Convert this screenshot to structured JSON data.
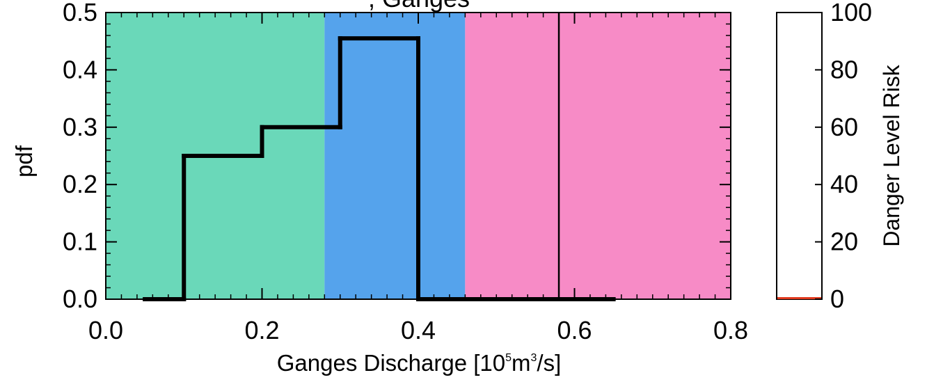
{
  "chart_data": [
    {
      "type": "step",
      "title_fragment": ", Ganges",
      "xlabel_main": "Ganges Discharge [10",
      "xlabel_exp1": "5",
      "xlabel_mid": "m",
      "xlabel_exp2": "3",
      "xlabel_end": "/s]",
      "ylabel": "pdf",
      "xlim": [
        0.0,
        0.8
      ],
      "ylim": [
        0.0,
        0.5
      ],
      "xticks": [
        "0.0",
        "0.2",
        "0.4",
        "0.6",
        "0.8"
      ],
      "xtick_values": [
        0.0,
        0.2,
        0.4,
        0.6,
        0.8
      ],
      "yticks": [
        "0.0",
        "0.1",
        "0.2",
        "0.3",
        "0.4",
        "0.5"
      ],
      "ytick_values": [
        0.0,
        0.1,
        0.2,
        0.3,
        0.4,
        0.5
      ],
      "bands": [
        {
          "x0": 0.0,
          "x1": 0.28,
          "color": "#6ad8b9"
        },
        {
          "x0": 0.28,
          "x1": 0.46,
          "color": "#55a3ec"
        },
        {
          "x0": 0.46,
          "x1": 0.8,
          "color": "#f78bc6"
        }
      ],
      "steps": [
        {
          "x0": 0.05,
          "x1": 0.1,
          "y": 0.0
        },
        {
          "x0": 0.1,
          "x1": 0.2,
          "y": 0.25
        },
        {
          "x0": 0.2,
          "x1": 0.3,
          "y": 0.3
        },
        {
          "x0": 0.3,
          "x1": 0.4,
          "y": 0.455
        },
        {
          "x0": 0.4,
          "x1": 0.65,
          "y": 0.0
        }
      ],
      "vline_x": 0.58,
      "line_color": "#000000"
    },
    {
      "type": "bar",
      "ylabel": "Danger Level Risk",
      "ylim": [
        0,
        100
      ],
      "yticks": [
        "0",
        "20",
        "40",
        "60",
        "80",
        "100"
      ],
      "ytick_values": [
        0,
        20,
        40,
        60,
        80,
        100
      ],
      "value": 0,
      "bar_color": "#e23a1e"
    }
  ]
}
